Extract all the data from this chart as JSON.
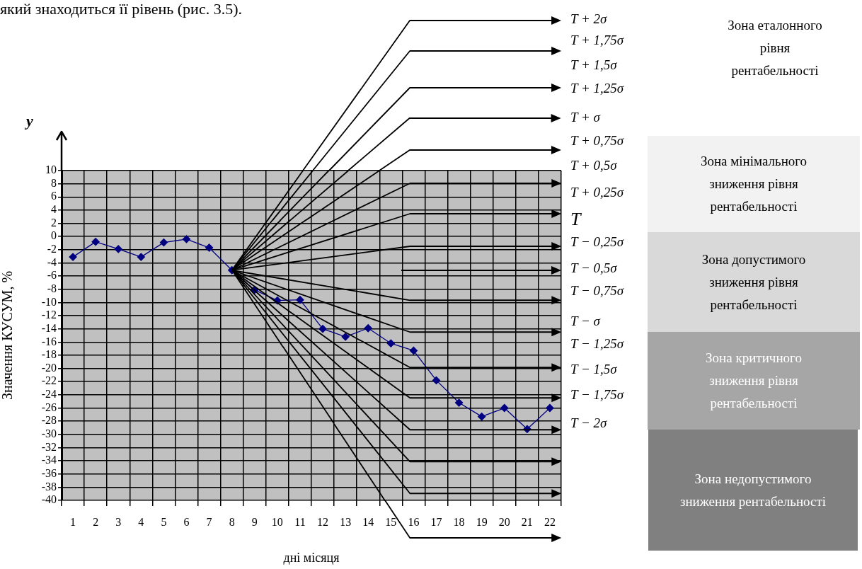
{
  "chart_data": {
    "type": "line",
    "xlabel": "дні місяця",
    "ylabel": "Значення КУСУМ, %",
    "x": [
      1,
      2,
      3,
      4,
      5,
      6,
      7,
      8,
      9,
      10,
      11,
      12,
      13,
      14,
      15,
      16,
      17,
      18,
      19,
      20,
      21,
      22
    ],
    "xlim": [
      0.5,
      22.5
    ],
    "ylim": [
      -40,
      10
    ],
    "xticks": [
      {
        "value": 0.5,
        "label": null
      },
      1,
      {
        "value": 1.5,
        "label": null
      },
      2,
      {
        "value": 2.5,
        "label": null
      },
      3,
      {
        "value": 3.5,
        "label": null
      },
      4,
      {
        "value": 4.5,
        "label": null
      },
      5,
      {
        "value": 5.5,
        "label": null
      },
      6,
      {
        "value": 6.5,
        "label": null
      },
      7,
      {
        "value": 7.5,
        "label": null
      },
      8,
      {
        "value": 8.5,
        "label": null
      },
      9,
      {
        "value": 9.5,
        "label": null
      },
      10,
      {
        "value": 10.5,
        "label": null
      },
      11,
      {
        "value": 11.5,
        "label": null
      },
      12,
      {
        "value": 12.5,
        "label": null
      },
      13,
      {
        "value": 13.5,
        "label": null
      },
      14,
      {
        "value": 14.5,
        "label": null
      },
      15,
      {
        "value": 15.5,
        "label": null
      },
      16,
      {
        "value": 16.5,
        "label": null
      },
      17,
      {
        "value": 17.5,
        "label": null
      },
      18,
      {
        "value": 18.5,
        "label": null
      },
      19,
      {
        "value": 19.5,
        "label": null
      },
      20,
      {
        "value": 20.5,
        "label": null
      },
      21,
      {
        "value": 21.5,
        "label": null
      },
      22,
      {
        "value": 22.5,
        "label": null
      }
    ],
    "yticks": [
      10,
      8,
      6,
      4,
      2,
      0,
      -2,
      -4,
      -6,
      -8,
      -10,
      -12,
      -14,
      -16,
      -18,
      -20,
      -22,
      -24,
      -26,
      -28,
      -30,
      -32,
      -34,
      -36,
      -38,
      -40
    ],
    "grid": true,
    "marker": "diamond",
    "series": [
      {
        "color": "#000080",
        "values": [
          -3.1,
          -0.8,
          -1.9,
          -3.1,
          -0.9,
          -0.4,
          -1.7,
          -5.1,
          -8.1,
          -9.7,
          -9.6,
          -14.0,
          -15.2,
          -13.9,
          -16.2,
          -17.3,
          -21.8,
          -25.2,
          -27.3,
          -26.0,
          -29.2,
          -26.0
        ]
      }
    ],
    "annotations": [
      "який знаходиться її рівень (рис. 3.5).",
      "y",
      "T + 2σ",
      "T + 1,75σ",
      "T + 1,5σ",
      "T + 1,25σ",
      "T + σ",
      "T + 0,75σ",
      "T + 0,5σ",
      "T + 0,25σ",
      "T",
      "T − 0,25σ",
      "T − 0,5σ",
      "T − 0,75σ",
      "T − σ",
      "T − 1,25σ",
      "T − 1,5σ",
      "T − 1,75σ",
      "T − 2σ",
      "Зона еталонного рівня рентабельності",
      "Зона мінімального зниження рівня рентабельності",
      "Зона допустимого зниження рівня рентабельності",
      "Зона критичного зниження рівня рентабельності",
      "Зона недопустимого зниження рентабельності"
    ]
  }
}
